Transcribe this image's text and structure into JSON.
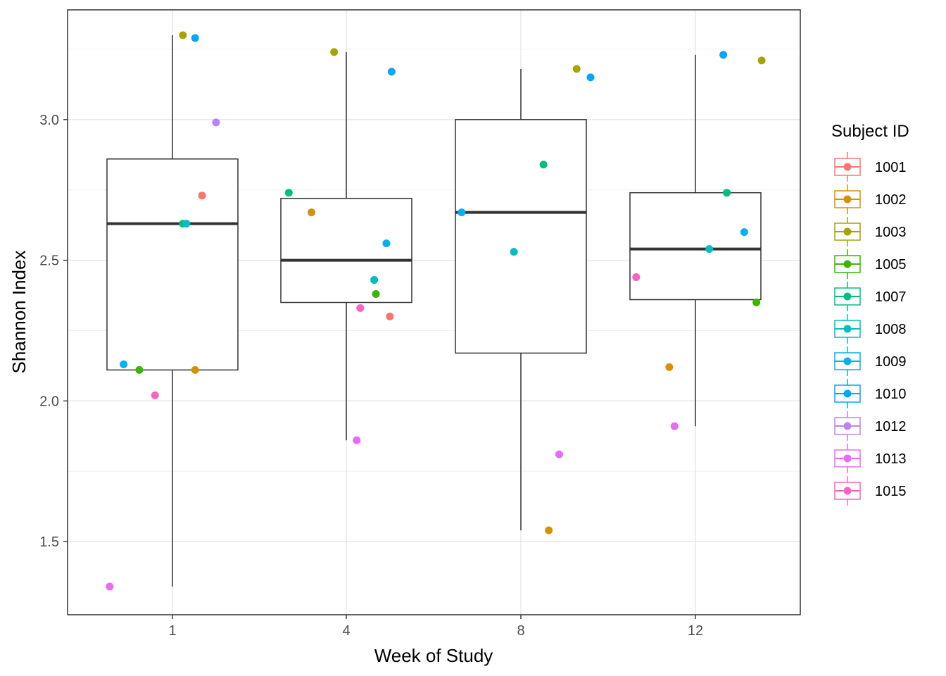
{
  "chart_data": {
    "type": "box",
    "xlabel": "Week of Study",
    "ylabel": "Shannon Index",
    "categories": [
      "1",
      "4",
      "8",
      "12"
    ],
    "ylim": [
      1.24,
      3.39
    ],
    "yticks": [
      1.5,
      2.0,
      2.5,
      3.0
    ],
    "ytick_labels": [
      "1.5",
      "2.0",
      "2.5",
      "3.0"
    ],
    "grid": true,
    "legend": {
      "title": "Subject ID",
      "position": "right",
      "entries": [
        {
          "label": "1001",
          "color": "#F8766D"
        },
        {
          "label": "1002",
          "color": "#D89000"
        },
        {
          "label": "1003",
          "color": "#A3A500"
        },
        {
          "label": "1005",
          "color": "#39B600"
        },
        {
          "label": "1007",
          "color": "#00BF7D"
        },
        {
          "label": "1008",
          "color": "#00BFC4"
        },
        {
          "label": "1009",
          "color": "#00B0F6"
        },
        {
          "label": "1010",
          "color": "#00A5FF"
        },
        {
          "label": "1012",
          "color": "#B983FF"
        },
        {
          "label": "1013",
          "color": "#E76BF3"
        },
        {
          "label": "1015",
          "color": "#FF62BC"
        }
      ]
    },
    "boxes": [
      {
        "category": "1",
        "whisker_low": 1.34,
        "q1": 2.11,
        "median": 2.63,
        "q3": 2.86,
        "whisker_high": 3.3
      },
      {
        "category": "4",
        "whisker_low": 1.86,
        "q1": 2.35,
        "median": 2.5,
        "q3": 2.72,
        "whisker_high": 3.24
      },
      {
        "category": "8",
        "whisker_low": 1.54,
        "q1": 2.17,
        "median": 2.67,
        "q3": 3.0,
        "whisker_high": 3.18
      },
      {
        "category": "12",
        "whisker_low": 1.91,
        "q1": 2.36,
        "median": 2.54,
        "q3": 2.74,
        "whisker_high": 3.23
      }
    ],
    "points": [
      {
        "category": "1",
        "subject": "1003",
        "jitter": 0.06,
        "value": 3.3
      },
      {
        "category": "1",
        "subject": "1010",
        "jitter": 0.13,
        "value": 3.29
      },
      {
        "category": "1",
        "subject": "1012",
        "jitter": 0.25,
        "value": 2.99
      },
      {
        "category": "1",
        "subject": "1001",
        "jitter": 0.17,
        "value": 2.73
      },
      {
        "category": "1",
        "subject": "1007",
        "jitter": 0.06,
        "value": 2.63
      },
      {
        "category": "1",
        "subject": "1008",
        "jitter": 0.08,
        "value": 2.63
      },
      {
        "category": "1",
        "subject": "1009",
        "jitter": -0.28,
        "value": 2.13
      },
      {
        "category": "1",
        "subject": "1005",
        "jitter": -0.19,
        "value": 2.11
      },
      {
        "category": "1",
        "subject": "1002",
        "jitter": 0.13,
        "value": 2.11
      },
      {
        "category": "1",
        "subject": "1015",
        "jitter": -0.1,
        "value": 2.02
      },
      {
        "category": "1",
        "subject": "1013",
        "jitter": -0.36,
        "value": 1.34
      },
      {
        "category": "4",
        "subject": "1003",
        "jitter": -0.07,
        "value": 3.24
      },
      {
        "category": "4",
        "subject": "1010",
        "jitter": 0.26,
        "value": 3.17
      },
      {
        "category": "4",
        "subject": "1007",
        "jitter": -0.33,
        "value": 2.74
      },
      {
        "category": "4",
        "subject": "1002",
        "jitter": -0.2,
        "value": 2.67
      },
      {
        "category": "4",
        "subject": "1009",
        "jitter": 0.23,
        "value": 2.56
      },
      {
        "category": "4",
        "subject": "1008",
        "jitter": 0.16,
        "value": 2.43
      },
      {
        "category": "4",
        "subject": "1005",
        "jitter": 0.17,
        "value": 2.38
      },
      {
        "category": "4",
        "subject": "1015",
        "jitter": 0.08,
        "value": 2.33
      },
      {
        "category": "4",
        "subject": "1001",
        "jitter": 0.25,
        "value": 2.3
      },
      {
        "category": "4",
        "subject": "1013",
        "jitter": 0.06,
        "value": 1.86
      },
      {
        "category": "8",
        "subject": "1003",
        "jitter": 0.32,
        "value": 3.18
      },
      {
        "category": "8",
        "subject": "1010",
        "jitter": 0.4,
        "value": 3.15
      },
      {
        "category": "8",
        "subject": "1007",
        "jitter": 0.13,
        "value": 2.84
      },
      {
        "category": "8",
        "subject": "1009",
        "jitter": -0.34,
        "value": 2.67
      },
      {
        "category": "8",
        "subject": "1008",
        "jitter": -0.04,
        "value": 2.53
      },
      {
        "category": "8",
        "subject": "1013",
        "jitter": 0.22,
        "value": 1.81
      },
      {
        "category": "8",
        "subject": "1002",
        "jitter": 0.16,
        "value": 1.54
      },
      {
        "category": "12",
        "subject": "1010",
        "jitter": 0.16,
        "value": 3.23
      },
      {
        "category": "12",
        "subject": "1003",
        "jitter": 0.38,
        "value": 3.21
      },
      {
        "category": "12",
        "subject": "1007",
        "jitter": 0.18,
        "value": 2.74
      },
      {
        "category": "12",
        "subject": "1009",
        "jitter": 0.28,
        "value": 2.6
      },
      {
        "category": "12",
        "subject": "1008",
        "jitter": 0.08,
        "value": 2.54
      },
      {
        "category": "12",
        "subject": "1015",
        "jitter": -0.34,
        "value": 2.44
      },
      {
        "category": "12",
        "subject": "1005",
        "jitter": 0.35,
        "value": 2.35
      },
      {
        "category": "12",
        "subject": "1002",
        "jitter": -0.15,
        "value": 2.12
      },
      {
        "category": "12",
        "subject": "1013",
        "jitter": -0.12,
        "value": 1.91
      }
    ]
  }
}
